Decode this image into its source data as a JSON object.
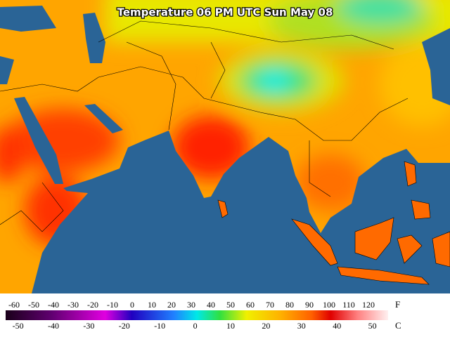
{
  "title": "Temperature 06 PM UTC Sun May 08",
  "colorbar": {
    "f_ticks": [
      -60,
      -50,
      -40,
      -30,
      -20,
      -10,
      0,
      10,
      20,
      30,
      40,
      50,
      60,
      70,
      80,
      90,
      100,
      110,
      120
    ],
    "f_unit": "F",
    "c_ticks": [
      -50,
      -40,
      -30,
      -20,
      -10,
      0,
      10,
      20,
      30,
      40,
      50
    ],
    "c_unit": "C"
  }
}
